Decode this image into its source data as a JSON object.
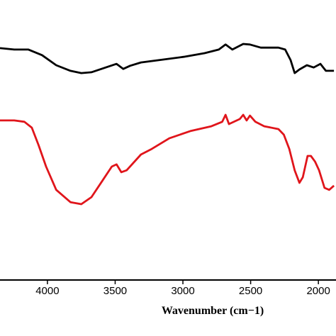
{
  "chart_data": {
    "type": "line",
    "x_label": "Wavenumber (cm−1)",
    "xlim": [
      4350,
      1870
    ],
    "ylim": [
      0,
      100
    ],
    "xticks": [
      4000,
      3500,
      3000,
      2500,
      2000
    ],
    "series": [
      {
        "color": "#000000",
        "x": [
          4350,
          4245,
          4140,
          4040,
          3935,
          3830,
          3750,
          3675,
          3570,
          3490,
          3440,
          3390,
          3310,
          3150,
          2995,
          2840,
          2735,
          2685,
          2635,
          2555,
          2505,
          2425,
          2295,
          2245,
          2205,
          2175,
          2140,
          2085,
          2035,
          1985,
          1945,
          1885
        ],
        "values": [
          82.8,
          82.3,
          82.3,
          80.3,
          76.7,
          74.7,
          73.9,
          74.2,
          75.9,
          77.2,
          75.4,
          76.5,
          77.7,
          78.7,
          79.7,
          81.0,
          82.3,
          84.1,
          82.3,
          84.3,
          84.1,
          83.0,
          83.0,
          82.3,
          78.5,
          73.9,
          75.2,
          76.7,
          75.9,
          77.2,
          74.7,
          74.7
        ]
      },
      {
        "color": "#e0151b",
        "x": [
          4350,
          4245,
          4170,
          4115,
          4065,
          4010,
          3935,
          3830,
          3750,
          3675,
          3595,
          3525,
          3490,
          3455,
          3415,
          3310,
          3230,
          3100,
          2945,
          2790,
          2710,
          2685,
          2660,
          2580,
          2555,
          2530,
          2505,
          2465,
          2400,
          2295,
          2255,
          2215,
          2175,
          2140,
          2115,
          2080,
          2055,
          2025,
          1995,
          1955,
          1920,
          1885
        ],
        "values": [
          57.0,
          57.0,
          56.5,
          54.4,
          48.1,
          40.5,
          32.2,
          27.8,
          27.1,
          29.6,
          35.4,
          40.5,
          41.3,
          38.5,
          39.2,
          44.8,
          46.8,
          50.6,
          53.2,
          54.9,
          56.5,
          59.0,
          55.7,
          57.5,
          59.0,
          57.0,
          58.7,
          56.5,
          54.9,
          53.9,
          51.9,
          46.8,
          39.2,
          34.7,
          36.7,
          44.3,
          44.3,
          42.3,
          39.2,
          32.9,
          32.2,
          33.7
        ]
      }
    ]
  }
}
